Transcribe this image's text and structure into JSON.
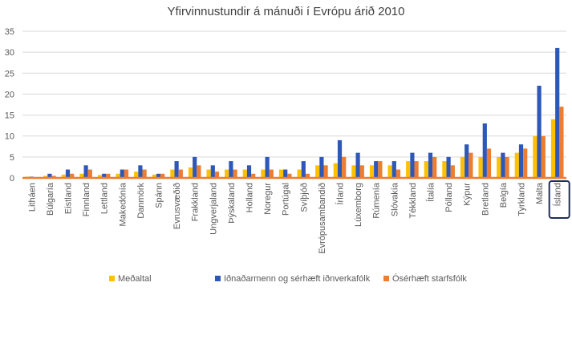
{
  "chart_data": {
    "type": "bar",
    "title": "Yfirvinnustundir  á mánuði í Evrópu árið 2010",
    "xlabel": "",
    "ylabel": "",
    "ylim": [
      0,
      35
    ],
    "yticks": [
      "0",
      "5",
      "10",
      "15",
      "20",
      "25",
      "30",
      "35"
    ],
    "grid": true,
    "legend_position": "bottom",
    "highlighted_category": "Ísland",
    "categories": [
      "Litháen",
      "Búlgaría",
      "Eistland",
      "Finnland",
      "Lettland",
      "Makedónía",
      "Danmörk",
      "Spánn",
      "Evrusvæðið",
      "Frakkland",
      "Ungverjaland",
      "Þýskaland",
      "Holland",
      "Noregur",
      "Portúgal",
      "Svíþjóð",
      "Evrópusambandið",
      "Írland",
      "Lúxemborg",
      "Rúmenía",
      "Slóvakía",
      "Tékkland",
      "Ítalía",
      "Pólland",
      "Kýpur",
      "Bretland",
      "Belgía",
      "Tyrkland",
      "Malta",
      "Ísland"
    ],
    "series": [
      {
        "name": "Meðaltal",
        "color": "#FFC000",
        "values": [
          0.3,
          0.5,
          0.8,
          1,
          0.7,
          1,
          1.5,
          0.8,
          2,
          2.5,
          2,
          2,
          2,
          2,
          2,
          2,
          3,
          3.5,
          3,
          3,
          3,
          4,
          4,
          4,
          5,
          5,
          5,
          6,
          10,
          14
        ]
      },
      {
        "name": "Iðnaðarmenn og sérhæft iðnverkafólk",
        "color": "#2E58B8",
        "values": [
          0.3,
          1,
          2,
          3,
          1,
          2,
          3,
          1,
          4,
          5,
          3,
          4,
          3,
          5,
          2,
          4,
          5,
          9,
          6,
          4,
          4,
          6,
          6,
          5,
          8,
          13,
          6,
          8,
          22,
          31
        ]
      },
      {
        "name": "Ósérhæft starfsfólk",
        "color": "#ED7D31",
        "values": [
          0.2,
          0.5,
          1,
          2,
          1,
          2,
          2,
          1,
          2,
          3,
          1.5,
          2,
          1,
          2,
          1,
          1,
          3,
          5,
          3,
          4,
          2,
          4,
          5,
          3,
          6,
          7,
          5,
          7,
          10,
          17
        ]
      }
    ]
  }
}
